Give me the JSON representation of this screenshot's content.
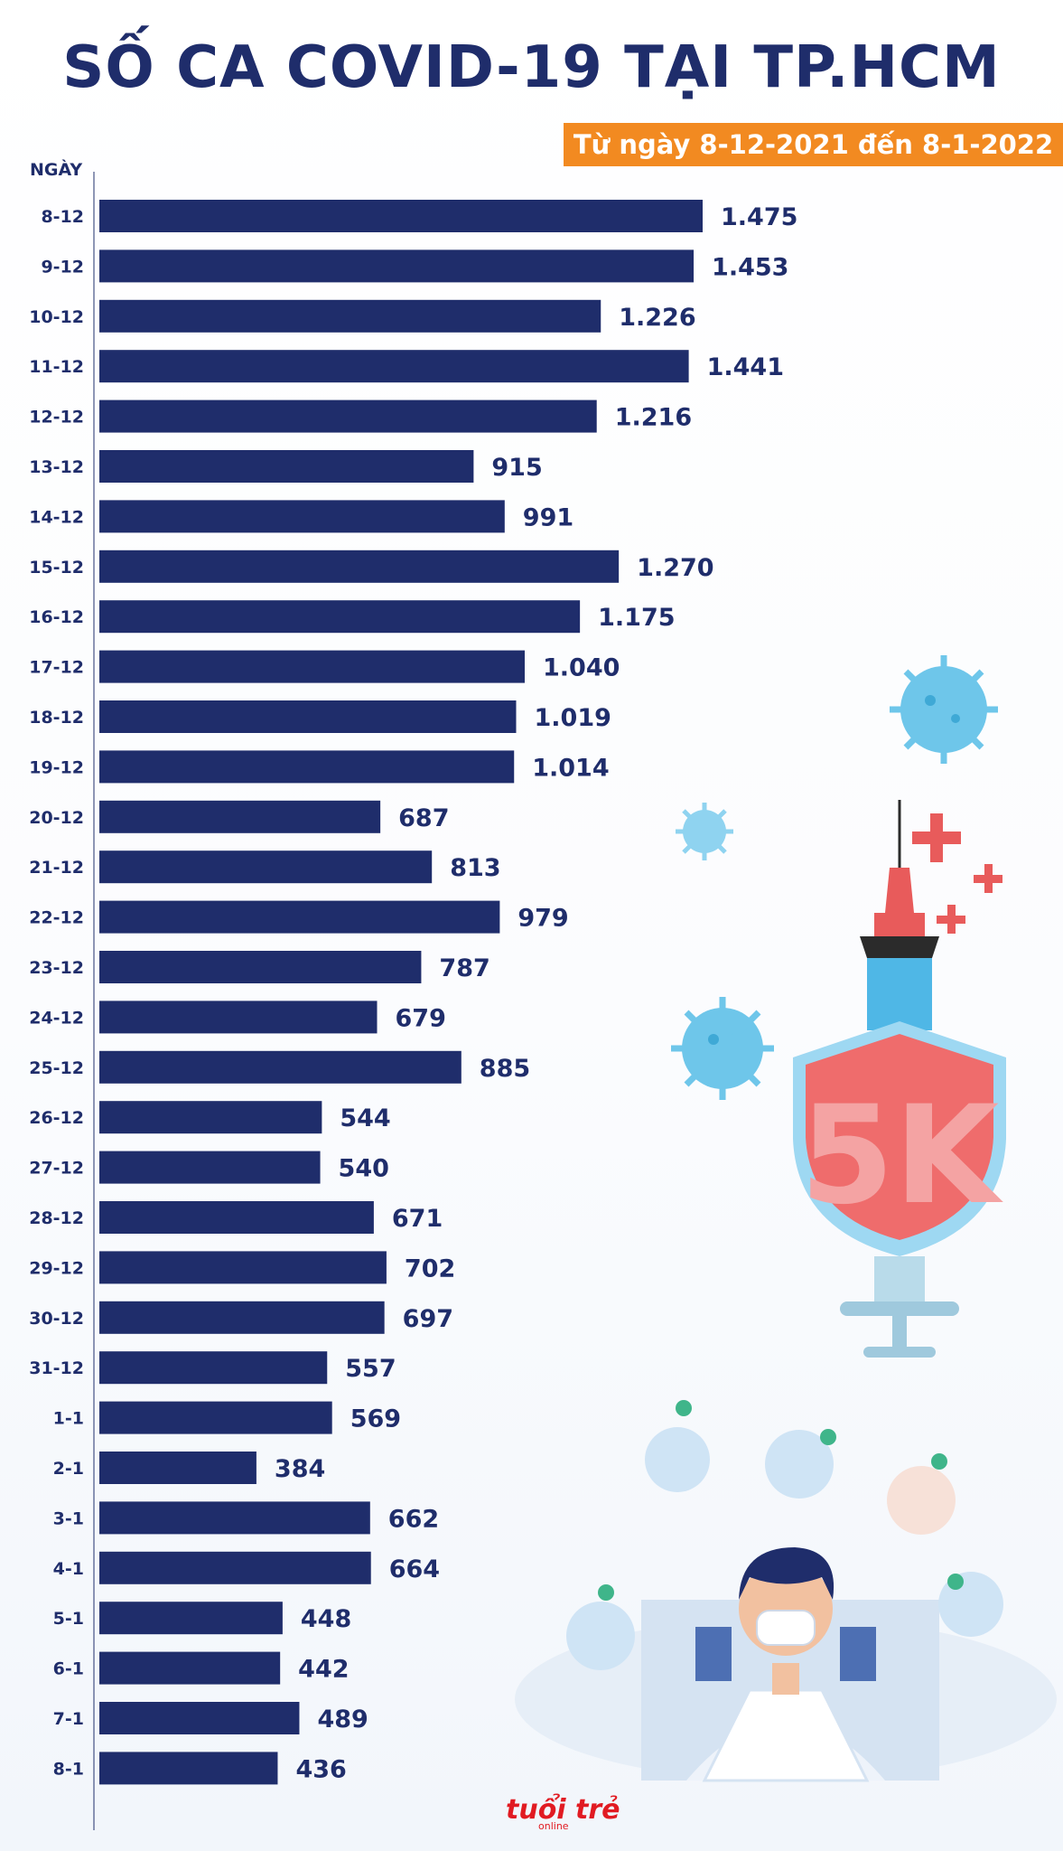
{
  "title": "SỐ CA COVID-19 TẠI TP.HCM",
  "subtitle": "Từ ngày 8-12-2021 đến 8-1-2022",
  "logo": {
    "name": "tuổi trẻ",
    "sub": "online"
  },
  "colors": {
    "bar": "#1f2d6b",
    "accent": "#f28a21",
    "text": "#1f2d6b"
  },
  "chart_data": {
    "type": "bar",
    "orientation": "horizontal",
    "title": "SỐ CA COVID-19 TẠI TP.HCM",
    "subtitle": "Từ ngày 8-12-2021 đến 8-1-2022",
    "ylabel": "NGÀY",
    "xlabel": "",
    "xlim": [
      0,
      1475
    ],
    "categories": [
      "8-12",
      "9-12",
      "10-12",
      "11-12",
      "12-12",
      "13-12",
      "14-12",
      "15-12",
      "16-12",
      "17-12",
      "18-12",
      "19-12",
      "20-12",
      "21-12",
      "22-12",
      "23-12",
      "24-12",
      "25-12",
      "26-12",
      "27-12",
      "28-12",
      "29-12",
      "30-12",
      "31-12",
      "1-1",
      "2-1",
      "3-1",
      "4-1",
      "5-1",
      "6-1",
      "7-1",
      "8-1"
    ],
    "values": [
      1475,
      1453,
      1226,
      1441,
      1216,
      915,
      991,
      1270,
      1175,
      1040,
      1019,
      1014,
      687,
      813,
      979,
      787,
      679,
      885,
      544,
      540,
      671,
      702,
      697,
      557,
      569,
      384,
      662,
      664,
      448,
      442,
      489,
      436
    ],
    "labels": [
      "1.475",
      "1.453",
      "1.226",
      "1.441",
      "1.216",
      "915",
      "991",
      "1.270",
      "1.175",
      "1.040",
      "1.019",
      "1.014",
      "687",
      "813",
      "979",
      "787",
      "679",
      "885",
      "544",
      "540",
      "671",
      "702",
      "697",
      "557",
      "569",
      "384",
      "662",
      "664",
      "448",
      "442",
      "489",
      "436"
    ]
  }
}
